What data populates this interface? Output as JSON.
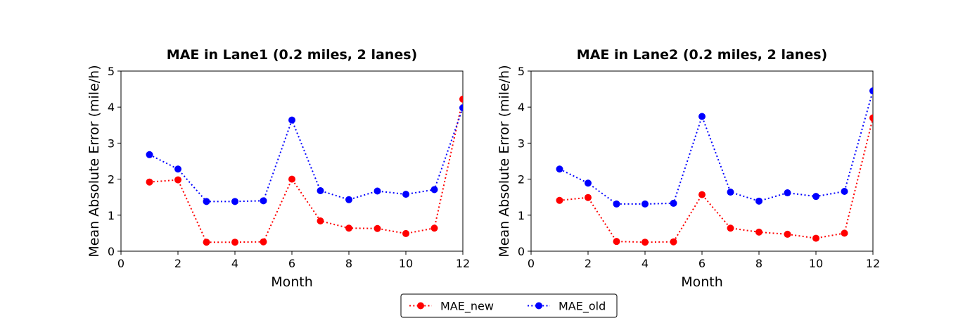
{
  "chart_data": [
    {
      "type": "line",
      "title": "MAE in Lane1 (0.2 miles, 2 lanes)",
      "xlabel": "Month",
      "ylabel": "Mean Absolute Error (mile/h)",
      "xlim": [
        0,
        12
      ],
      "ylim": [
        0,
        5
      ],
      "xticks": [
        0,
        2,
        4,
        6,
        8,
        10,
        12
      ],
      "yticks": [
        0,
        1,
        2,
        3,
        4,
        5
      ],
      "grid": false,
      "x": [
        1,
        2,
        3,
        4,
        5,
        6,
        7,
        8,
        9,
        10,
        11,
        12
      ],
      "series": [
        {
          "name": "MAE_new",
          "color": "#ff0000",
          "values": [
            1.92,
            1.98,
            0.25,
            0.25,
            0.26,
            2.0,
            0.84,
            0.64,
            0.63,
            0.49,
            0.64,
            4.22
          ]
        },
        {
          "name": "MAE_old",
          "color": "#0000ff",
          "values": [
            2.68,
            2.28,
            1.38,
            1.38,
            1.4,
            3.64,
            1.68,
            1.43,
            1.67,
            1.58,
            1.71,
            3.98
          ]
        }
      ]
    },
    {
      "type": "line",
      "title": "MAE in Lane2 (0.2 miles, 2 lanes)",
      "xlabel": "Month",
      "ylabel": "Mean Absolute Error (mile/h)",
      "xlim": [
        0,
        12
      ],
      "ylim": [
        0,
        5
      ],
      "xticks": [
        0,
        2,
        4,
        6,
        8,
        10,
        12
      ],
      "yticks": [
        0,
        1,
        2,
        3,
        4,
        5
      ],
      "grid": false,
      "x": [
        1,
        2,
        3,
        4,
        5,
        6,
        7,
        8,
        9,
        10,
        11,
        12
      ],
      "series": [
        {
          "name": "MAE_new",
          "color": "#ff0000",
          "values": [
            1.41,
            1.49,
            0.27,
            0.25,
            0.26,
            1.57,
            0.64,
            0.53,
            0.47,
            0.36,
            0.5,
            3.7
          ]
        },
        {
          "name": "MAE_old",
          "color": "#0000ff",
          "values": [
            2.28,
            1.89,
            1.31,
            1.31,
            1.33,
            3.74,
            1.64,
            1.39,
            1.62,
            1.52,
            1.66,
            4.45
          ]
        }
      ]
    }
  ],
  "legend": {
    "placement": "bottom-center",
    "entries": [
      {
        "label": "MAE_new",
        "color": "#ff0000"
      },
      {
        "label": "MAE_old",
        "color": "#0000ff"
      }
    ]
  }
}
